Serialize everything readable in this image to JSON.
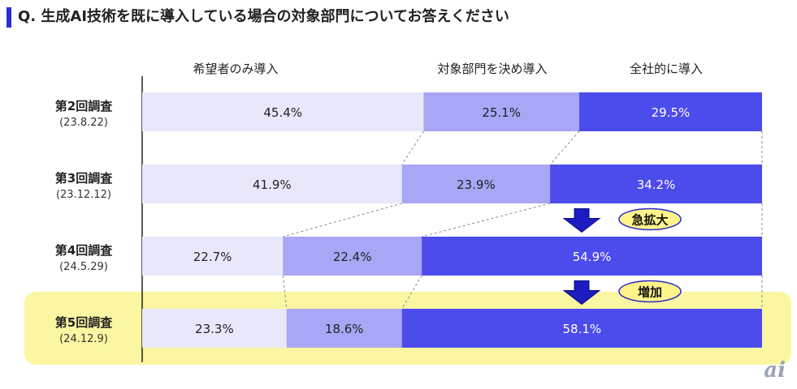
{
  "title": "Q. 生成AI技術を既に導入している場合の対象部門についてお答えください",
  "logo_text": "ai",
  "chart_data": {
    "type": "bar",
    "stacked": true,
    "horizontal": true,
    "unit": "%",
    "categories": [
      {
        "name": "第2回調査",
        "date": "(23.8.22)"
      },
      {
        "name": "第3回調査",
        "date": "(23.12.12)"
      },
      {
        "name": "第4回調査",
        "date": "(24.5.29)"
      },
      {
        "name": "第5回調査",
        "date": "(24.12.9)"
      }
    ],
    "series": [
      {
        "name": "希望者のみ導入",
        "values": [
          45.4,
          41.9,
          22.7,
          23.3
        ],
        "color": "#e8e8fa"
      },
      {
        "name": "対象部門を決め導入",
        "values": [
          25.1,
          23.9,
          22.4,
          18.6
        ],
        "color": "#a7a7f6"
      },
      {
        "name": "全社的に導入",
        "values": [
          29.5,
          34.2,
          54.9,
          58.1
        ],
        "color": "#4c4cec"
      }
    ],
    "annotations": [
      {
        "text": "急拡大",
        "between": [
          1,
          2
        ]
      },
      {
        "text": "増加",
        "between": [
          2,
          3
        ]
      }
    ],
    "highlight_category": 3,
    "highlight_color": "#fbf6a2",
    "xlim": [
      0,
      100
    ],
    "legend": "top",
    "connector_lines": true
  }
}
